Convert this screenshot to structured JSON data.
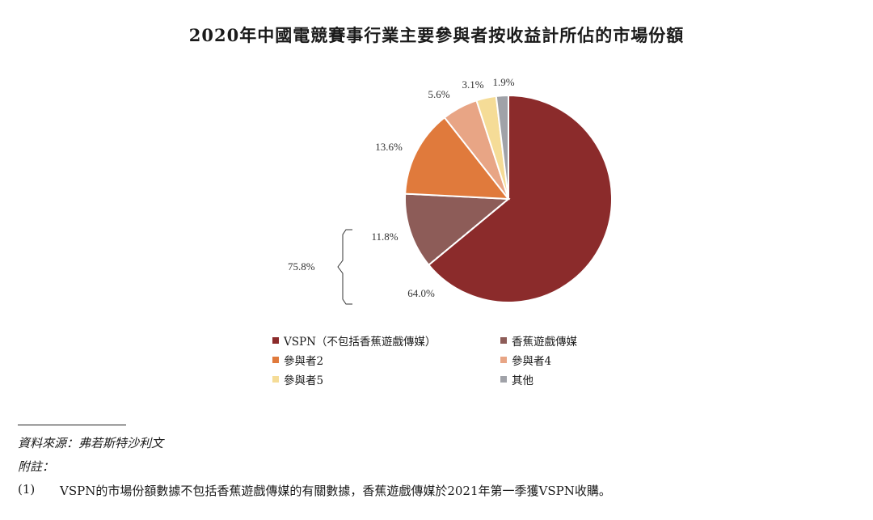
{
  "chart_data": {
    "type": "pie",
    "title": "2020年中國電競賽事行業主要參與者按收益計所佔的市場份額",
    "slices": [
      {
        "name": "VSPN（不包括香蕉遊戲傳媒）",
        "value": 64.0,
        "label": "64.0%",
        "color": "#8b2b2b"
      },
      {
        "name": "香蕉遊戲傳媒",
        "value": 11.8,
        "label": "11.8%",
        "color": "#8d5c58"
      },
      {
        "name": "參與者2",
        "value": 13.6,
        "label": "13.6%",
        "color": "#e07a3c"
      },
      {
        "name": "參與者4",
        "value": 5.6,
        "label": "5.6%",
        "color": "#e8a585"
      },
      {
        "name": "參與者5",
        "value": 3.1,
        "label": "3.1%",
        "color": "#f5dc97"
      },
      {
        "name": "其他",
        "value": 1.9,
        "label": "1.9%",
        "color": "#a0a2a8"
      }
    ],
    "bracket_label": "75.8%",
    "legend_position": "bottom"
  },
  "source": "資料來源：弗若斯特沙利文",
  "notes_heading": "附註：",
  "note": {
    "number": "(1)",
    "text": "VSPN的市場份額數據不包括香蕉遊戲傳媒的有關數據，香蕉遊戲傳媒於2021年第一季獲VSPN收購。"
  }
}
